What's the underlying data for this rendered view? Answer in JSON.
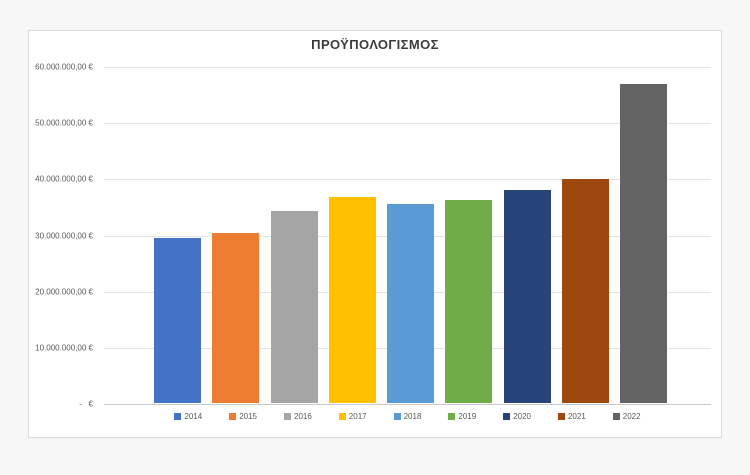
{
  "chart_data": {
    "type": "bar",
    "title": "ΠΡΟΫΠΟΛΟΓΙΣΜΟΣ",
    "xlabel": "",
    "ylabel": "",
    "categories": [
      "2014",
      "2015",
      "2016",
      "2017",
      "2018",
      "2019",
      "2020",
      "2021",
      "2022"
    ],
    "values": [
      29400000,
      30300000,
      34200000,
      36700000,
      35500000,
      36300000,
      38000000,
      40000000,
      57000000
    ],
    "colors": [
      "#4472C4",
      "#ED7D31",
      "#A5A5A5",
      "#FFC000",
      "#5B9BD5",
      "#70AD47",
      "#264478",
      "#9E480E",
      "#636363"
    ],
    "ylim": [
      0,
      60000000
    ],
    "y_ticks": [
      "60.000.000,00 €",
      "50.000.000,00 €",
      "40.000.000,00 €",
      "30.000.000,00 €",
      "20.000.000,00 €",
      "10.000.000,00 €",
      "-   €"
    ],
    "grid": "horizontal",
    "legend_position": "bottom"
  }
}
